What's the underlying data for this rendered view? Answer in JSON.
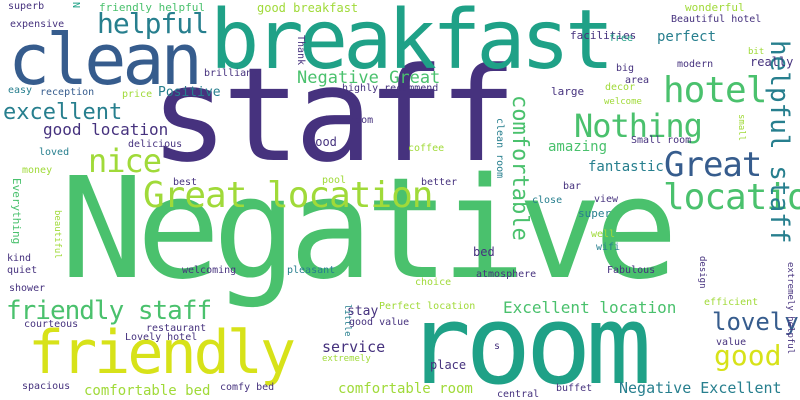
{
  "palette": {
    "dark_purple": "#46327e",
    "blue": "#365c8d",
    "teal": "#277f8e",
    "green_teal": "#1fa187",
    "green": "#4ac16d",
    "lime": "#a0da39",
    "yellow": "#d7e219"
  },
  "words": [
    "Negative",
    "staff",
    "room",
    "breakfast",
    "clean",
    "friendly",
    "Great location",
    "location",
    "hotel",
    "Nothing",
    "Great",
    "nice",
    "helpful",
    "helpful staff",
    "friendly staff",
    "excellent",
    "comfortable",
    "good",
    "lovely",
    "Negative Great",
    "good location",
    "Excellent location",
    "comfortable room",
    "Negative Excellent",
    "comfortable bed",
    "service",
    "amazing",
    "fantastic",
    "Positive",
    "perfect",
    "good breakfast",
    "Beautiful hotel",
    "friendly helpful",
    "superb",
    "expensive",
    "facilities",
    "wonderful",
    "Thank",
    "N",
    "free",
    "really",
    "modern",
    "big",
    "area",
    "bit",
    "brilliant",
    "easy",
    "reception",
    "price",
    "highly recommend",
    "large",
    "decor",
    "welcome",
    "bathroom",
    "food",
    "coffee",
    "delicious",
    "Small room",
    "clean room",
    "pool",
    "best",
    "better",
    "loved",
    "money",
    "Everything",
    "bar",
    "view",
    "close",
    "super",
    "beautiful",
    "bed",
    "well",
    "wifi",
    "small",
    "kind",
    "quiet",
    "welcoming",
    "pleasant",
    "choice",
    "atmosphere",
    "Fabulous",
    "design",
    "shower",
    "Perfect location",
    "efficient",
    "extremely helpful",
    "stay",
    "courteous",
    "restaurant",
    "little",
    "good value",
    "value",
    "Lovely hotel",
    "extremely",
    "place",
    "s",
    "spacious",
    "comfy bed",
    "buffet",
    "central"
  ]
}
